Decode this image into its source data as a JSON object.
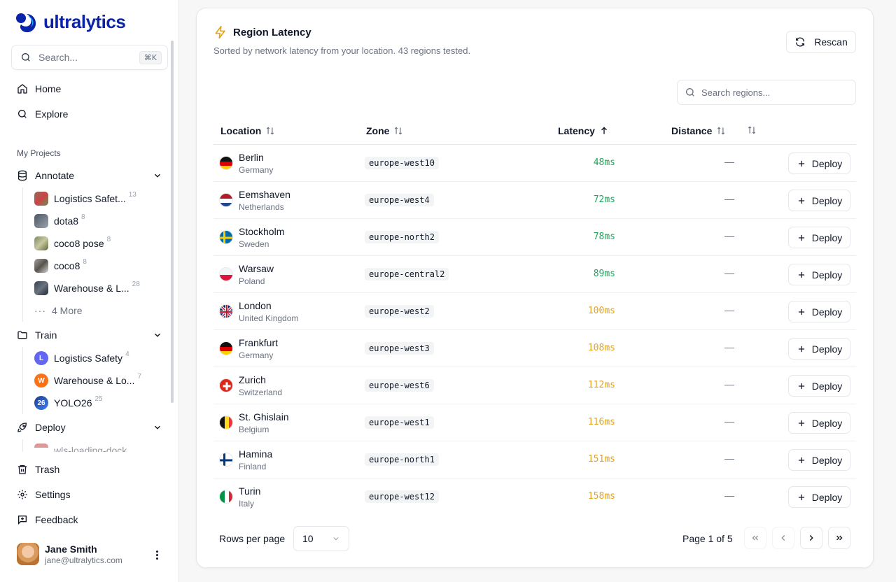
{
  "app": {
    "brand": "ultralytics"
  },
  "sidebar": {
    "search_placeholder": "Search...",
    "search_shortcut": "⌘K",
    "nav": [
      {
        "label": "Home",
        "icon": "home-icon"
      },
      {
        "label": "Explore",
        "icon": "search-icon"
      }
    ],
    "section_label": "My Projects",
    "annotate": {
      "label": "Annotate",
      "items": [
        {
          "label": "Logistics Safet...",
          "count": "13"
        },
        {
          "label": "dota8",
          "count": "8"
        },
        {
          "label": "coco8 pose",
          "count": "8"
        },
        {
          "label": "coco8",
          "count": "8"
        },
        {
          "label": "Warehouse & L...",
          "count": "28"
        }
      ],
      "more": "4 More"
    },
    "train": {
      "label": "Train",
      "items": [
        {
          "label": "Logistics Safety",
          "count": "4",
          "letter": "L",
          "color": "#6366f1"
        },
        {
          "label": "Warehouse & Lo...",
          "count": "7",
          "letter": "W",
          "color": "#f97316"
        },
        {
          "label": "YOLO26",
          "count": "25",
          "letter": "26",
          "color": "#1e3a8a"
        }
      ]
    },
    "deploy": {
      "label": "Deploy",
      "items": [
        {
          "label": "wls-loading-dock"
        }
      ]
    },
    "bottom": [
      {
        "label": "Trash"
      },
      {
        "label": "Settings"
      },
      {
        "label": "Feedback"
      }
    ],
    "user": {
      "name": "Jane Smith",
      "email": "jane@ultralytics.com"
    }
  },
  "main": {
    "title": "Region Latency",
    "subtitle": "Sorted by network latency from your location. 43 regions tested.",
    "rescan_label": "Rescan",
    "region_search_placeholder": "Search regions...",
    "columns": {
      "location": "Location",
      "zone": "Zone",
      "latency": "Latency",
      "distance": "Distance"
    },
    "deploy_label": "Deploy",
    "rows": [
      {
        "city": "Berlin",
        "country": "Germany",
        "zone": "europe-west10",
        "latency": "48ms",
        "status": "good",
        "distance": "—",
        "flag": "de"
      },
      {
        "city": "Eemshaven",
        "country": "Netherlands",
        "zone": "europe-west4",
        "latency": "72ms",
        "status": "good",
        "distance": "—",
        "flag": "nl"
      },
      {
        "city": "Stockholm",
        "country": "Sweden",
        "zone": "europe-north2",
        "latency": "78ms",
        "status": "good",
        "distance": "—",
        "flag": "se"
      },
      {
        "city": "Warsaw",
        "country": "Poland",
        "zone": "europe-central2",
        "latency": "89ms",
        "status": "good",
        "distance": "—",
        "flag": "pl"
      },
      {
        "city": "London",
        "country": "United Kingdom",
        "zone": "europe-west2",
        "latency": "100ms",
        "status": "fair",
        "distance": "—",
        "flag": "gb"
      },
      {
        "city": "Frankfurt",
        "country": "Germany",
        "zone": "europe-west3",
        "latency": "108ms",
        "status": "fair",
        "distance": "—",
        "flag": "de"
      },
      {
        "city": "Zurich",
        "country": "Switzerland",
        "zone": "europe-west6",
        "latency": "112ms",
        "status": "fair",
        "distance": "—",
        "flag": "ch"
      },
      {
        "city": "St. Ghislain",
        "country": "Belgium",
        "zone": "europe-west1",
        "latency": "116ms",
        "status": "fair",
        "distance": "—",
        "flag": "be"
      },
      {
        "city": "Hamina",
        "country": "Finland",
        "zone": "europe-north1",
        "latency": "151ms",
        "status": "fair",
        "distance": "—",
        "flag": "fi"
      },
      {
        "city": "Turin",
        "country": "Italy",
        "zone": "europe-west12",
        "latency": "158ms",
        "status": "fair",
        "distance": "—",
        "flag": "it"
      }
    ],
    "footer": {
      "rows_per_page_label": "Rows per page",
      "rows_per_page_value": "10",
      "page_info": "Page 1 of 5"
    }
  },
  "colors": {
    "brand": "#0b23a9",
    "latency_good": "#22a55b",
    "latency_fair": "#e5a418"
  }
}
